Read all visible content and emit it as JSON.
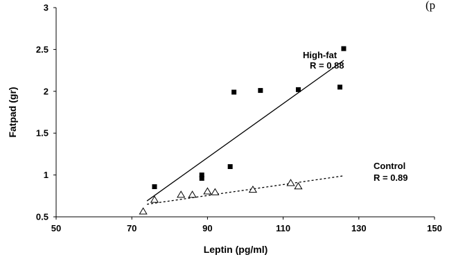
{
  "page_fragment": "(p",
  "chart_data": {
    "type": "scatter",
    "xlabel": "Leptin (pg/ml)",
    "ylabel": "Fatpad (gr)",
    "xlim": [
      50,
      150
    ],
    "ylim": [
      0.5,
      3
    ],
    "xticks": [
      "50",
      "70",
      "90",
      "110",
      "130",
      "150"
    ],
    "yticks": [
      "0.5",
      "1",
      "1.5",
      "2",
      "2.5",
      "3"
    ],
    "grid": false,
    "series": [
      {
        "name": "High-fat",
        "annotation": "R = 0.88",
        "marker": "filled-square",
        "color": "#000000",
        "points": [
          [
            76,
            0.86
          ],
          [
            88.5,
            1.0
          ],
          [
            88.5,
            0.96
          ],
          [
            96,
            1.1
          ],
          [
            97,
            1.99
          ],
          [
            104,
            2.01
          ],
          [
            114,
            2.02
          ],
          [
            125,
            2.05
          ],
          [
            126,
            2.51
          ]
        ],
        "trendline": {
          "x": [
            74,
            126
          ],
          "y": [
            0.69,
            2.37
          ],
          "style": "solid"
        }
      },
      {
        "name": "Control",
        "annotation": "R = 0.89",
        "marker": "open-triangle",
        "color": "#000000",
        "points": [
          [
            73,
            0.56
          ],
          [
            76,
            0.7
          ],
          [
            83,
            0.76
          ],
          [
            86,
            0.76
          ],
          [
            90,
            0.8
          ],
          [
            92,
            0.79
          ],
          [
            102,
            0.82
          ],
          [
            112,
            0.9
          ],
          [
            114,
            0.86
          ]
        ],
        "trendline": {
          "x": [
            74,
            126
          ],
          "y": [
            0.65,
            0.99
          ],
          "style": "dotted"
        }
      }
    ]
  }
}
